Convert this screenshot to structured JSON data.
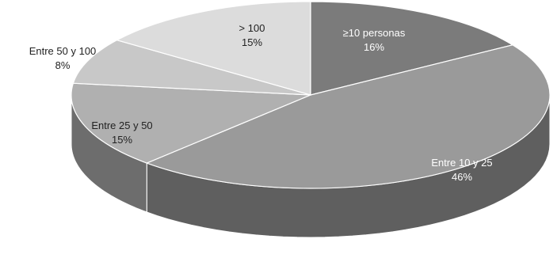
{
  "chart_data": {
    "type": "pie",
    "style": "3d",
    "legend": "none",
    "slices": [
      {
        "label": "≥10 personas",
        "percent_label": "16%",
        "value": 16,
        "color": "#7b7b7b",
        "label_color": "#ffffff"
      },
      {
        "label": "Entre 10 y 25",
        "percent_label": "46%",
        "value": 46,
        "color": "#9a9a9a",
        "label_color": "#ffffff"
      },
      {
        "label": "Entre 25 y 50",
        "percent_label": "15%",
        "value": 15,
        "color": "#b0b0b0",
        "label_color": "#222222"
      },
      {
        "label": "Entre 50 y 100",
        "percent_label": "8%",
        "value": 8,
        "color": "#c8c8c8",
        "label_color": "#222222"
      },
      {
        "label": "> 100",
        "percent_label": "15%",
        "value": 15,
        "color": "#dcdcdc",
        "label_color": "#222222"
      }
    ]
  }
}
